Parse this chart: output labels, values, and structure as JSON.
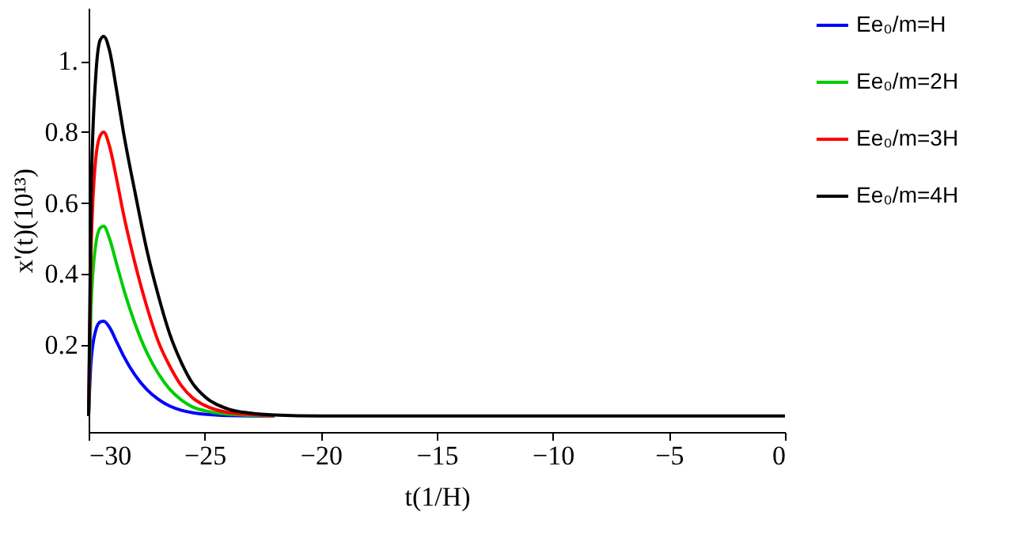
{
  "chart_data": {
    "type": "line",
    "xlabel": "t(1/H)",
    "ylabel": "x'(t)(10¹³)",
    "x": [
      -30,
      -29.9,
      -29.7,
      -29.5,
      -29.35,
      -29.1,
      -28.8,
      -28.5,
      -28,
      -27.5,
      -27,
      -26.5,
      -26,
      -25.5,
      -25,
      -24,
      -23,
      -22,
      -20,
      0
    ],
    "series": [
      {
        "name": "Ee₀/m=H",
        "color": "#0000ff",
        "values": [
          0,
          0.15,
          0.24,
          0.265,
          0.267,
          0.25,
          0.21,
          0.17,
          0.115,
          0.075,
          0.047,
          0.028,
          0.016,
          0.009,
          0.005,
          0.001,
          0,
          0,
          null,
          null
        ]
      },
      {
        "name": "Ee₀/m=2H",
        "color": "#00cc00",
        "values": [
          0,
          0.3,
          0.48,
          0.53,
          0.535,
          0.5,
          0.43,
          0.36,
          0.26,
          0.18,
          0.12,
          0.075,
          0.045,
          0.025,
          0.015,
          0.005,
          0.002,
          0,
          null,
          null
        ]
      },
      {
        "name": "Ee₀/m=3H",
        "color": "#ff0000",
        "values": [
          0,
          0.45,
          0.72,
          0.79,
          0.8,
          0.76,
          0.67,
          0.57,
          0.43,
          0.31,
          0.21,
          0.14,
          0.085,
          0.05,
          0.03,
          0.01,
          0.004,
          0.001,
          null,
          null
        ]
      },
      {
        "name": "Ee₀/m=4H",
        "color": "#000000",
        "values": [
          0,
          0.6,
          0.95,
          1.06,
          1.07,
          1.03,
          0.92,
          0.8,
          0.63,
          0.47,
          0.34,
          0.23,
          0.15,
          0.09,
          0.055,
          0.02,
          0.008,
          0.003,
          0,
          0
        ]
      }
    ],
    "xlim": [
      -30,
      0
    ],
    "xticks": [
      -30,
      -25,
      -20,
      -15,
      -10,
      -5,
      0
    ],
    "ylim": [
      -0.045,
      1.15
    ],
    "yticks": [
      0.2,
      0.4,
      0.6,
      0.8,
      {
        "value": 1,
        "label": "1."
      }
    ],
    "legend": "right",
    "grid": false,
    "marker": "none",
    "line_style": "solid"
  }
}
